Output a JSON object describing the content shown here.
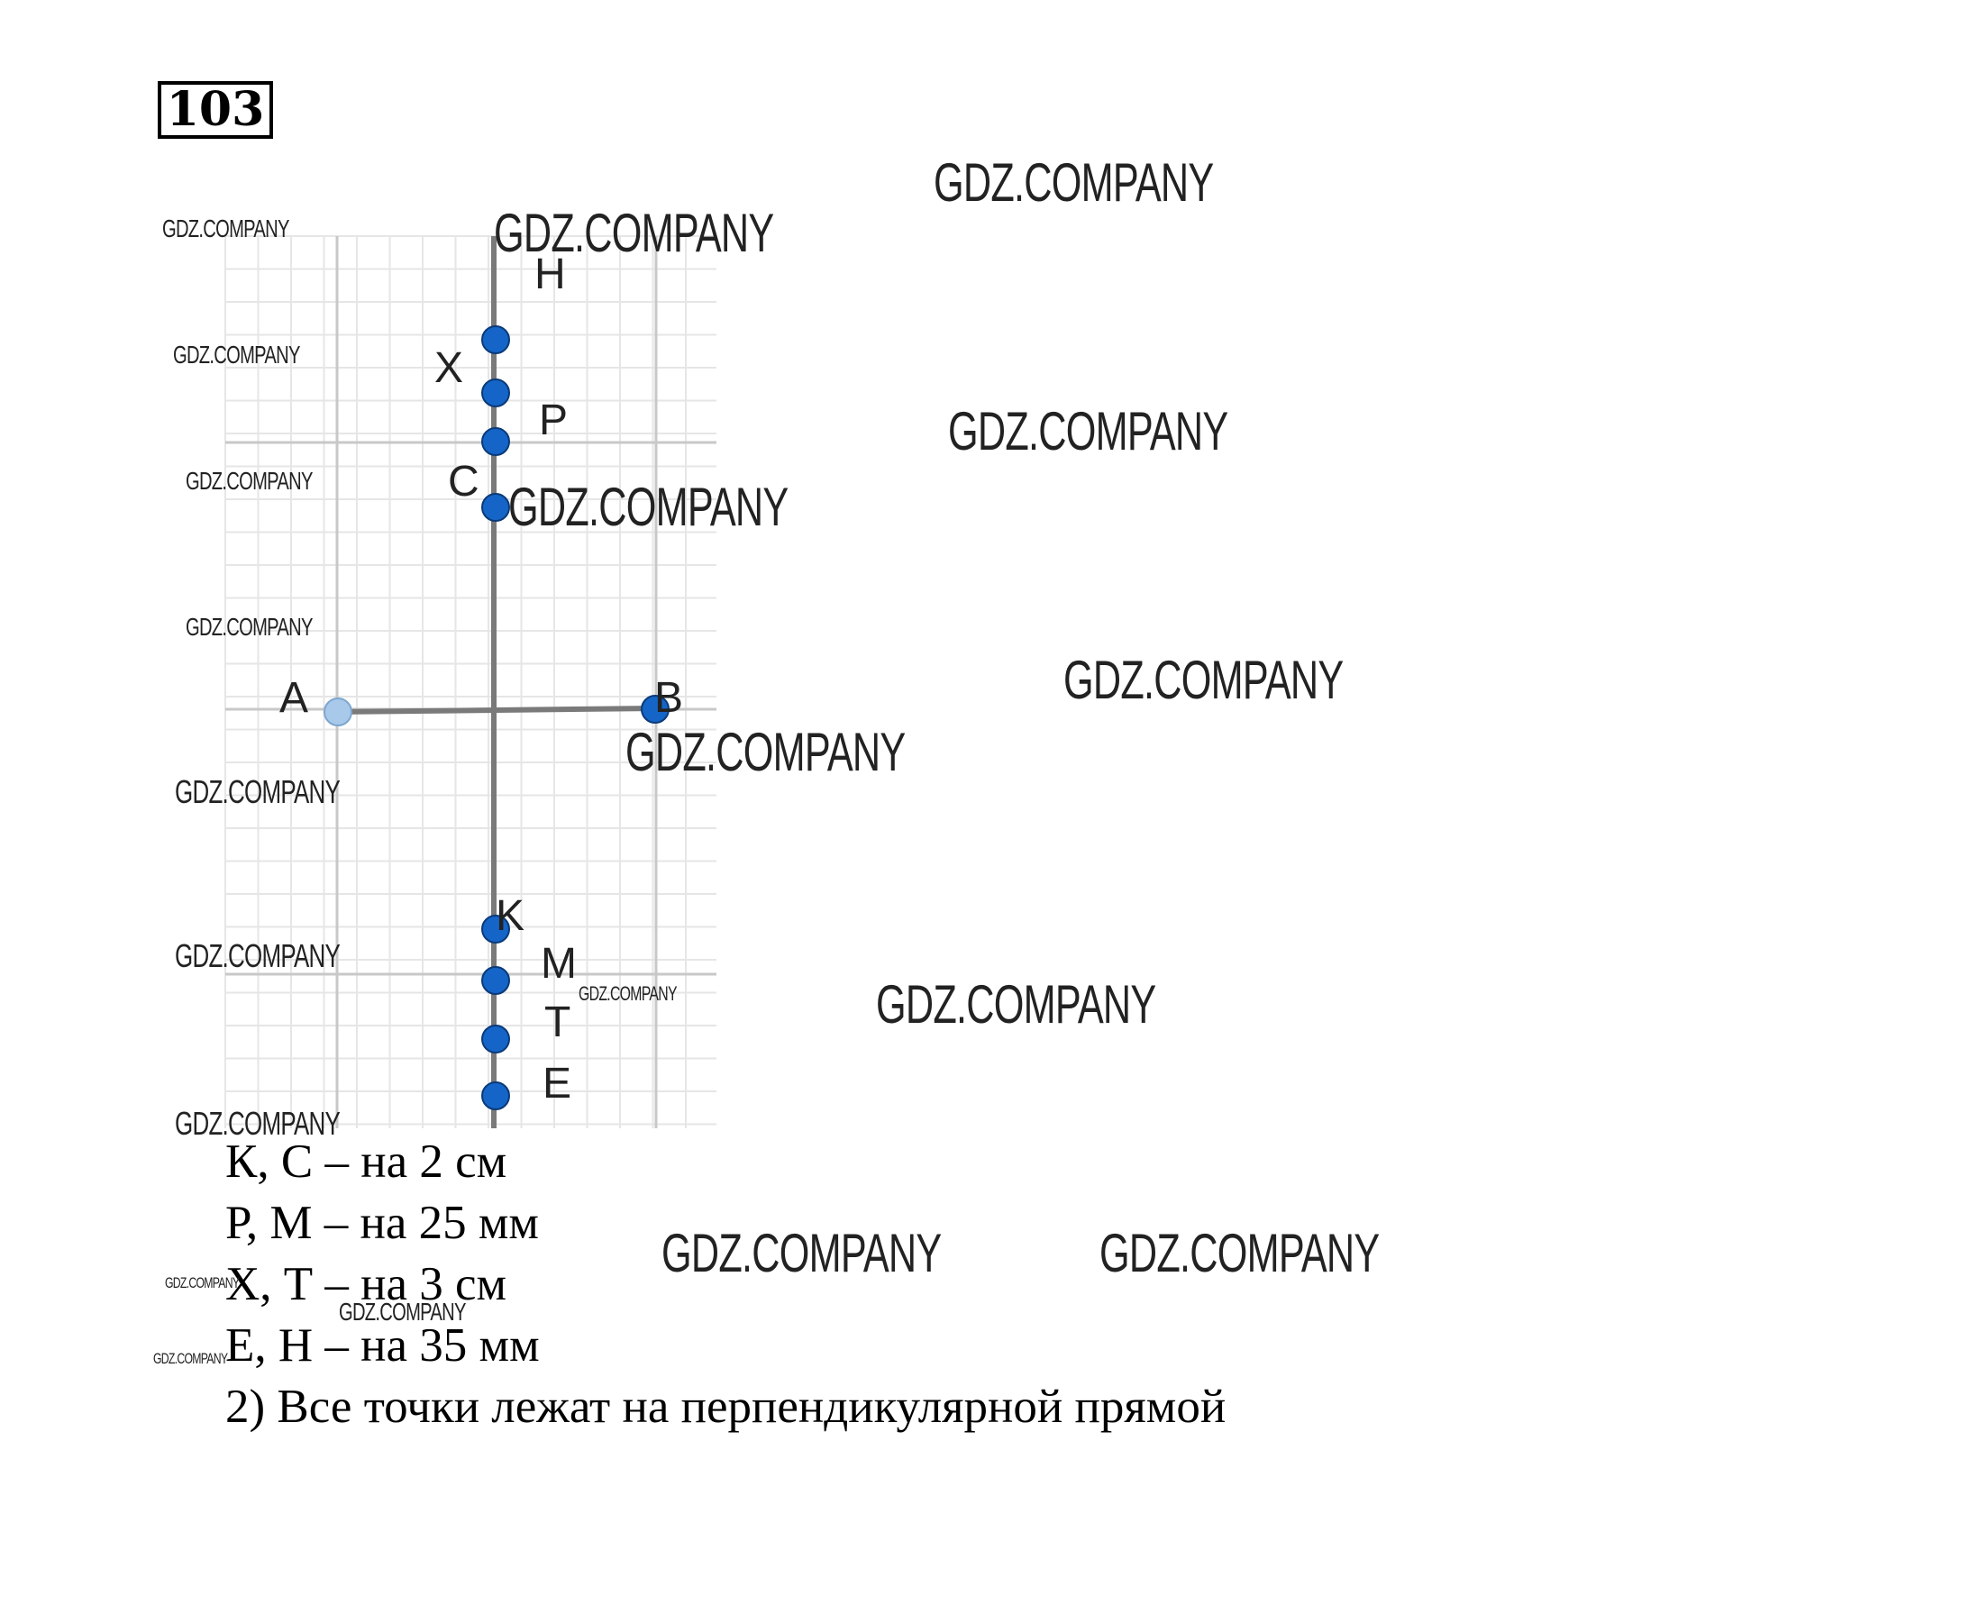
{
  "problem_number": "103",
  "figure": {
    "segment": {
      "endpoints": [
        "A",
        "B"
      ]
    },
    "point_labels": {
      "H": "H",
      "X": "X",
      "P": "P",
      "C": "C",
      "A": "A",
      "B": "B",
      "K": "K",
      "M": "M",
      "T": "T",
      "E": "E"
    }
  },
  "answers": [
    "К, С – на 2 см",
    "Р, М – на 25 мм",
    "Х, Т – на 3 см",
    "Е, Н – на 35 мм",
    "2) Все точки лежат на перпендикулярной прямой"
  ],
  "watermark": "GDZ.COMPANY",
  "colors": {
    "grid_fine": "#e6e6e6",
    "grid_major": "#c8c8c8",
    "line": "#7a7a7a",
    "point_fill": "#1565c8",
    "point_stroke": "#0b3a78",
    "point_a_fill": "#a9c9ea"
  }
}
